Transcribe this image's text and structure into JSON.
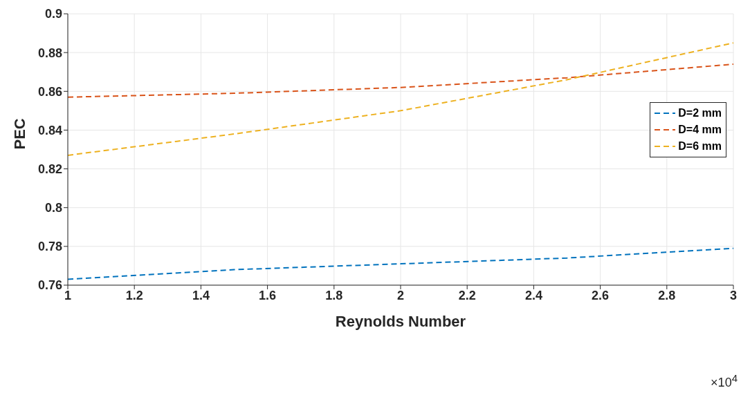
{
  "chart_data": {
    "type": "line",
    "xlabel": "Reynolds Number",
    "ylabel": "PEC",
    "x": [
      1,
      1.5,
      2,
      2.5,
      3
    ],
    "series": [
      {
        "name": "D=2 mm",
        "color": "#0072bd",
        "values": [
          0.763,
          0.768,
          0.771,
          0.774,
          0.779
        ]
      },
      {
        "name": "D=4 mm",
        "color": "#d95319",
        "values": [
          0.857,
          0.859,
          0.862,
          0.867,
          0.874
        ]
      },
      {
        "name": "D=6 mm",
        "color": "#edb120",
        "values": [
          0.827,
          0.838,
          0.85,
          0.866,
          0.885
        ]
      }
    ],
    "xlim": [
      1,
      3
    ],
    "xticks": [
      1,
      1.2,
      1.4,
      1.6,
      1.8,
      2,
      2.2,
      2.4,
      2.6,
      2.8,
      3
    ],
    "ylim": [
      0.76,
      0.9
    ],
    "yticks": [
      0.76,
      0.78,
      0.8,
      0.82,
      0.84,
      0.86,
      0.88,
      0.9
    ],
    "grid": true,
    "legend": "right",
    "line_style": "dashed",
    "marker": "none",
    "annotations": [
      "×10$^{4}$"
    ]
  }
}
